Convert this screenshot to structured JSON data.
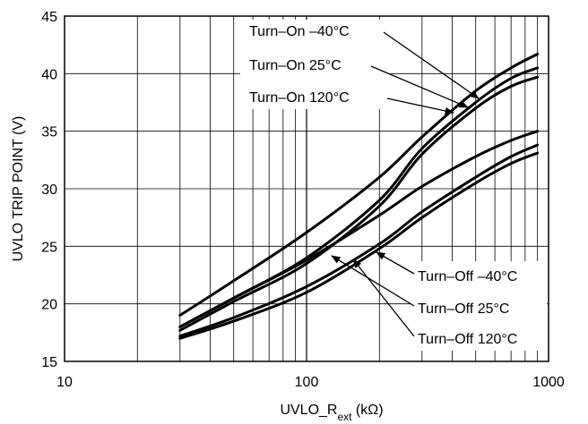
{
  "chart_data": {
    "type": "line",
    "title": "",
    "xlabel": "UVLO_R",
    "xlabel_sub": "ext",
    "xlabel_unit": " (kΩ)",
    "ylabel": "UVLO TRIP POINT (V)",
    "xscale": "log",
    "xlim": [
      10,
      1000
    ],
    "ylim": [
      15,
      45
    ],
    "grid": true,
    "xticks": [
      10,
      100,
      1000
    ],
    "xtick_labels": [
      "10",
      "100",
      "1000"
    ],
    "yticks": [
      15,
      20,
      25,
      30,
      35,
      40,
      45
    ],
    "ytick_labels": [
      "15",
      "20",
      "25",
      "30",
      "35",
      "40",
      "45"
    ],
    "series": [
      {
        "name": "Turn–On –40°C",
        "x": [
          30,
          50,
          100,
          200,
          300,
          500,
          700,
          900
        ],
        "y": [
          19.0,
          22.0,
          26.2,
          31.0,
          34.5,
          38.5,
          40.5,
          41.7
        ]
      },
      {
        "name": "Turn–On 25°C",
        "x": [
          30,
          50,
          100,
          200,
          300,
          500,
          700,
          900
        ],
        "y": [
          18.0,
          20.5,
          24.0,
          29.0,
          33.5,
          37.5,
          39.6,
          40.5
        ]
      },
      {
        "name": "Turn–On 120°C",
        "x": [
          30,
          50,
          100,
          200,
          300,
          500,
          700,
          900
        ],
        "y": [
          17.7,
          20.2,
          23.5,
          28.5,
          33.0,
          37.0,
          38.9,
          39.7
        ]
      },
      {
        "name": "Turn–Off –40°C",
        "x": [
          30,
          50,
          100,
          200,
          300,
          500,
          700,
          900
        ],
        "y": [
          18.0,
          20.5,
          23.8,
          27.7,
          30.2,
          32.8,
          34.2,
          35.0
        ]
      },
      {
        "name": "Turn–Off 25°C",
        "x": [
          30,
          50,
          100,
          200,
          300,
          500,
          700,
          900
        ],
        "y": [
          17.2,
          18.8,
          21.5,
          25.2,
          28.0,
          31.0,
          32.8,
          33.8
        ]
      },
      {
        "name": "Turn–Off 120°C",
        "x": [
          30,
          50,
          100,
          200,
          300,
          500,
          700,
          900
        ],
        "y": [
          17.0,
          18.5,
          21.0,
          24.8,
          27.5,
          30.5,
          32.2,
          33.1
        ]
      }
    ],
    "annotations": [
      "Turn–On –40°C",
      "Turn–On 25°C",
      "Turn–On 120°C",
      "Turn–Off –40°C",
      "Turn–Off 25°C",
      "Turn–Off 120°C"
    ],
    "legend": "inline-with-arrows"
  }
}
